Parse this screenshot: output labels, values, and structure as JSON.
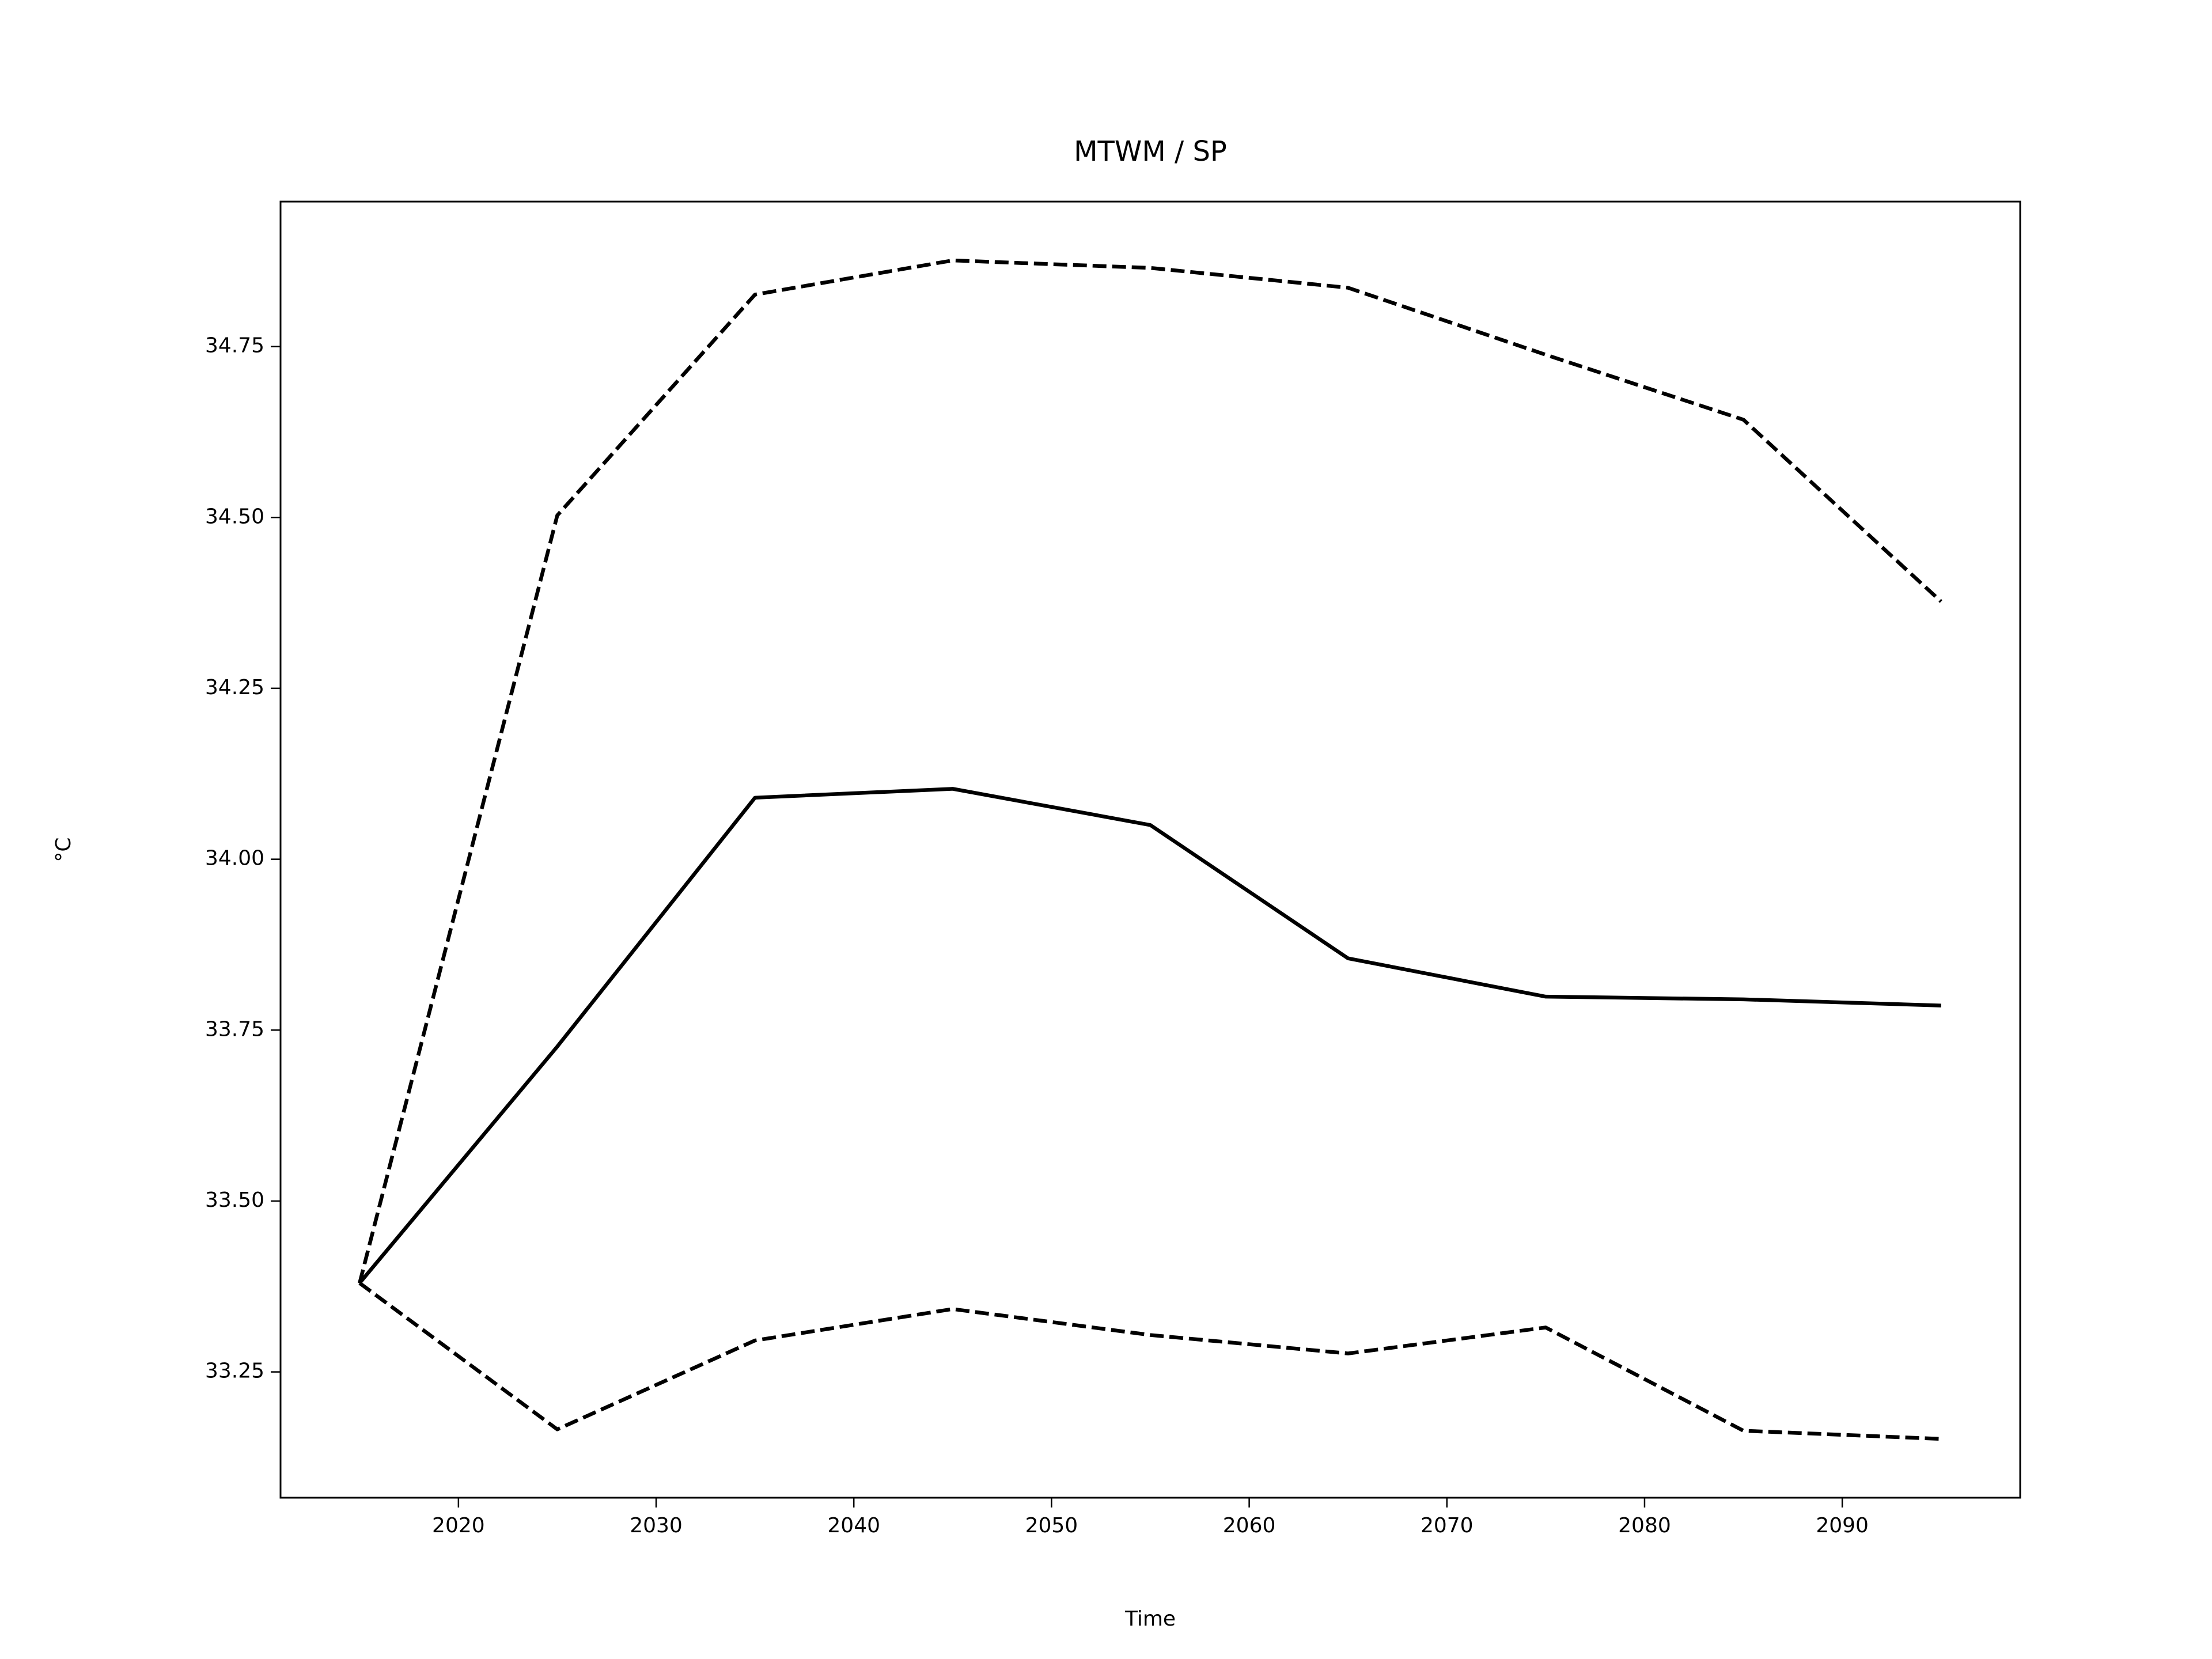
{
  "chart_data": {
    "type": "line",
    "title": "MTWM / SP",
    "xlabel": "Time",
    "ylabel": "°C",
    "x": [
      2015,
      2025,
      2035,
      2045,
      2055,
      2065,
      2075,
      2085,
      2095
    ],
    "series": [
      {
        "color": "#000000",
        "dashed": true,
        "values": [
          33.38,
          34.503,
          34.826,
          34.876,
          34.865,
          34.836,
          34.738,
          34.643,
          34.377
        ]
      },
      {
        "color": "#000000",
        "dashed": false,
        "values": [
          33.38,
          33.726,
          34.09,
          34.103,
          34.05,
          33.855,
          33.799,
          33.795,
          33.786
        ]
      },
      {
        "color": "#000000",
        "dashed": true,
        "values": [
          33.38,
          33.166,
          33.296,
          33.342,
          33.304,
          33.277,
          33.315,
          33.164,
          33.152
        ]
      }
    ],
    "xlim": [
      2011,
      2099
    ],
    "ylim": [
      33.066,
      34.962
    ],
    "xticks": [
      2020,
      2030,
      2040,
      2050,
      2060,
      2070,
      2080,
      2090
    ],
    "yticks": [
      33.25,
      {
        "value": 33.5,
        "label": "33.50"
      },
      33.75,
      {
        "value": 34,
        "label": "34.00"
      },
      34.25,
      {
        "value": 34.5,
        "label": "34.50"
      },
      34.75
    ],
    "grid": false
  }
}
